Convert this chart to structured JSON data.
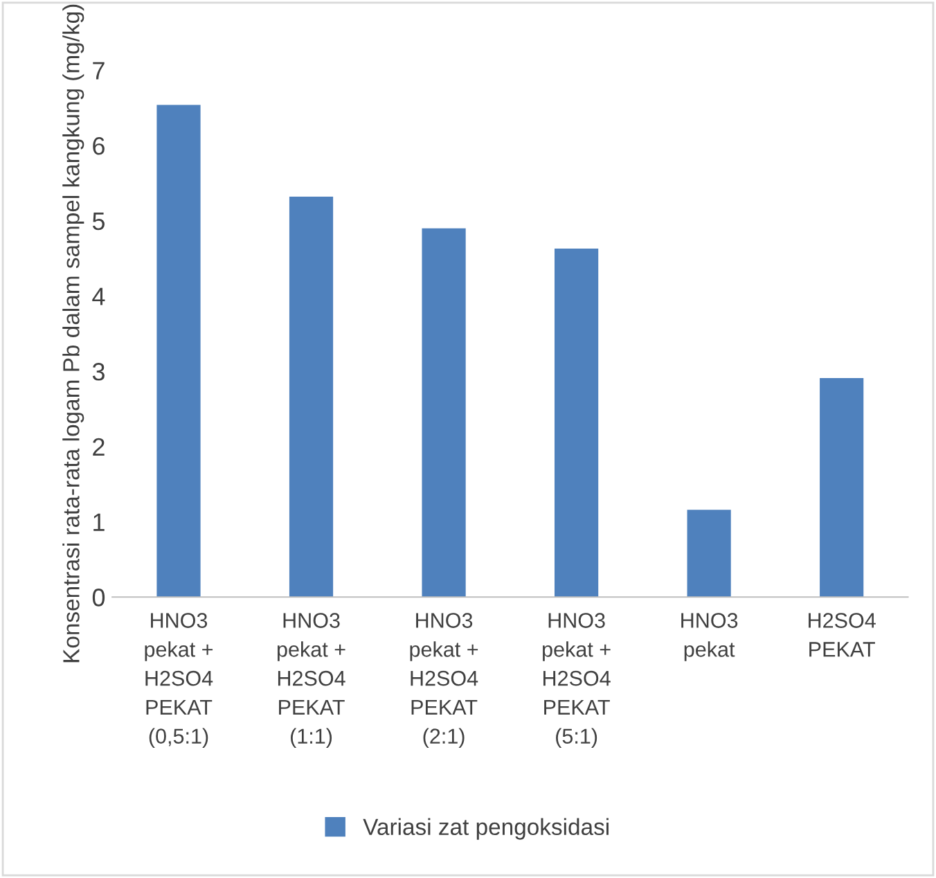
{
  "chart_data": {
    "type": "bar",
    "ylabel": "Konsentrasi rata-rata logam Pb dalam sampel kangkung (mg/kg)",
    "categories": [
      "HNO3\npekat +\nH2SO4\nPEKAT\n(0,5:1)",
      "HNO3\npekat +\nH2SO4\nPEKAT\n(1:1)",
      "HNO3\npekat +\nH2SO4\nPEKAT\n(2:1)",
      "HNO3\npekat +\nH2SO4\nPEKAT\n(5:1)",
      "HNO3\npekat",
      "H2SO4\nPEKAT"
    ],
    "series": [
      {
        "name": "Variasi zat pengoksidasi",
        "color": "#4f81bd",
        "values": [
          6.54,
          5.32,
          4.9,
          4.63,
          1.16,
          2.91
        ]
      }
    ],
    "ylim": [
      0,
      7
    ],
    "yticks": [
      0,
      1,
      2,
      3,
      4,
      5,
      6,
      7
    ],
    "grid": false,
    "legend": "bottom"
  }
}
